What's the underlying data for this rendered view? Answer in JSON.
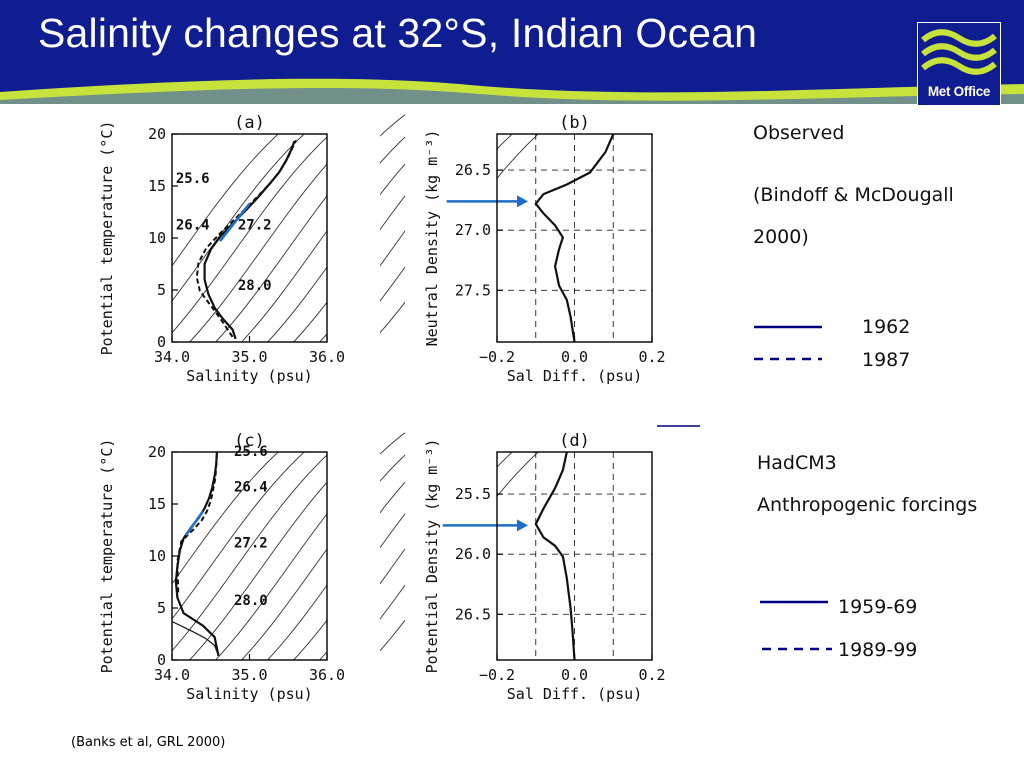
{
  "slide": {
    "title": "Salinity changes at 32°S, Indian Ocean",
    "logo_text": "Met Office",
    "header_color": "#101d90",
    "accent_color": "#c8e23c",
    "citation": "(Banks et al, GRL 2000)"
  },
  "observed": {
    "heading": "Observed",
    "source_line1": "(Bindoff & McDougall",
    "source_line2": "2000)",
    "legend": [
      {
        "label": "1962",
        "style": "solid"
      },
      {
        "label": "1987",
        "style": "dashed"
      }
    ]
  },
  "model": {
    "heading": "HadCM3",
    "subheading": "Anthropogenic forcings",
    "legend": [
      {
        "label": "1959-69",
        "style": "solid"
      },
      {
        "label": "1989-99",
        "style": "dashed"
      }
    ]
  },
  "chart_data": [
    {
      "id": "a",
      "type": "line",
      "panel_label": "(a)",
      "xlabel": "Salinity (psu)",
      "ylabel": "Potential temperature (°C)",
      "xlim": [
        34.0,
        36.0
      ],
      "ylim": [
        0,
        20
      ],
      "xticks": [
        "34.0",
        "35.0",
        "36.0"
      ],
      "yticks": [
        "0",
        "5",
        "10",
        "15",
        "20"
      ],
      "isopycnal_labels": [
        "25.6",
        "26.4",
        "27.2",
        "28.0"
      ],
      "series": [
        {
          "style": "solid",
          "points": [
            [
              34.82,
              0.3
            ],
            [
              34.78,
              1.2
            ],
            [
              34.66,
              2.2
            ],
            [
              34.55,
              3.3
            ],
            [
              34.47,
              4.6
            ],
            [
              34.42,
              6.0
            ],
            [
              34.42,
              7.5
            ],
            [
              34.5,
              8.9
            ],
            [
              34.63,
              10.2
            ],
            [
              34.8,
              11.5
            ],
            [
              34.97,
              12.8
            ],
            [
              35.12,
              14.0
            ],
            [
              35.26,
              15.2
            ],
            [
              35.38,
              16.3
            ],
            [
              35.47,
              17.4
            ],
            [
              35.54,
              18.5
            ],
            [
              35.58,
              19.3
            ]
          ]
        },
        {
          "style": "dashed",
          "points": [
            [
              34.78,
              0.5
            ],
            [
              34.62,
              2.3
            ],
            [
              34.49,
              3.6
            ],
            [
              34.36,
              4.9
            ],
            [
              34.32,
              6.2
            ],
            [
              34.34,
              7.6
            ],
            [
              34.44,
              9.0
            ],
            [
              34.6,
              10.3
            ],
            [
              34.78,
              11.6
            ],
            [
              34.96,
              12.9
            ],
            [
              35.12,
              14.1
            ],
            [
              35.27,
              15.3
            ],
            [
              35.39,
              16.4
            ],
            [
              35.48,
              17.5
            ],
            [
              35.55,
              18.6
            ],
            [
              35.6,
              19.4
            ]
          ]
        },
        {
          "style": "blue",
          "points": [
            [
              34.62,
              9.7
            ],
            [
              35.0,
              13.3
            ]
          ]
        }
      ]
    },
    {
      "id": "b",
      "type": "line",
      "panel_label": "(b)",
      "xlabel": "Sal Diff. (psu)",
      "ylabel": "Neutral Density (kg m⁻³)",
      "xlim": [
        -0.2,
        0.2
      ],
      "ylim": [
        27.93,
        26.2
      ],
      "xticks": [
        "−0.2",
        "0.0",
        "0.2"
      ],
      "yticks": [
        "26.5",
        "27.0",
        "27.5"
      ],
      "series": [
        {
          "style": "solid",
          "points": [
            [
              0.1,
              26.2
            ],
            [
              0.08,
              26.35
            ],
            [
              0.04,
              26.52
            ],
            [
              -0.02,
              26.62
            ],
            [
              -0.08,
              26.7
            ],
            [
              -0.1,
              26.78
            ],
            [
              -0.08,
              26.86
            ],
            [
              -0.05,
              26.96
            ],
            [
              -0.03,
              27.06
            ],
            [
              -0.04,
              27.16
            ],
            [
              -0.05,
              27.3
            ],
            [
              -0.04,
              27.46
            ],
            [
              -0.02,
              27.58
            ],
            [
              -0.01,
              27.72
            ],
            [
              0.0,
              27.93
            ]
          ]
        },
        {
          "style": "arrow",
          "points": [
            [
              -0.33,
              26.76
            ],
            [
              -0.12,
              26.76
            ]
          ]
        }
      ]
    },
    {
      "id": "c",
      "type": "line",
      "panel_label": "(c)",
      "xlabel": "Salinity (psu)",
      "ylabel": "Potential temperature (°C)",
      "xlim": [
        34.0,
        36.0
      ],
      "ylim": [
        0,
        20
      ],
      "xticks": [
        "34.0",
        "35.0",
        "36.0"
      ],
      "yticks": [
        "0",
        "5",
        "10",
        "15",
        "20"
      ],
      "isopycnal_labels": [
        "25.6",
        "26.4",
        "27.2",
        "28.0"
      ],
      "series": [
        {
          "style": "solid",
          "points": [
            [
              34.6,
              0.4
            ],
            [
              34.55,
              2.2
            ],
            [
              34.4,
              3.3
            ],
            [
              34.15,
              4.5
            ],
            [
              34.07,
              6.0
            ],
            [
              34.05,
              7.5
            ],
            [
              34.07,
              9.0
            ],
            [
              34.1,
              10.5
            ],
            [
              34.15,
              11.7
            ],
            [
              34.25,
              12.8
            ],
            [
              34.35,
              13.7
            ],
            [
              34.42,
              14.6
            ],
            [
              34.48,
              15.6
            ],
            [
              34.52,
              16.6
            ],
            [
              34.55,
              17.7
            ],
            [
              34.57,
              18.8
            ],
            [
              34.58,
              20.0
            ]
          ]
        },
        {
          "style": "dashed",
          "points": [
            [
              34.08,
              6.5
            ],
            [
              34.07,
              9.5
            ],
            [
              34.12,
              11.4
            ],
            [
              34.27,
              12.5
            ],
            [
              34.38,
              13.4
            ],
            [
              34.45,
              14.3
            ],
            [
              34.5,
              15.3
            ],
            [
              34.53,
              16.4
            ],
            [
              34.56,
              17.5
            ],
            [
              34.57,
              18.7
            ],
            [
              34.58,
              20.0
            ]
          ]
        },
        {
          "style": "thin",
          "points": [
            [
              34.6,
              0.4
            ],
            [
              34.55,
              1.4
            ],
            [
              34.43,
              2.1
            ],
            [
              34.25,
              2.8
            ],
            [
              34.0,
              3.7
            ]
          ]
        },
        {
          "style": "blue",
          "points": [
            [
              34.18,
              12.0
            ],
            [
              34.4,
              14.3
            ]
          ]
        }
      ]
    },
    {
      "id": "d",
      "type": "line",
      "panel_label": "(d)",
      "xlabel": "Sal Diff. (psu)",
      "ylabel": "Potential Density (kg m⁻³)",
      "xlim": [
        -0.2,
        0.2
      ],
      "ylim": [
        26.88,
        25.15
      ],
      "xticks": [
        "−0.2",
        "0.0",
        "0.2"
      ],
      "yticks": [
        "25.5",
        "26.0",
        "26.5"
      ],
      "series": [
        {
          "style": "solid",
          "points": [
            [
              -0.02,
              25.15
            ],
            [
              -0.03,
              25.3
            ],
            [
              -0.05,
              25.45
            ],
            [
              -0.08,
              25.62
            ],
            [
              -0.1,
              25.75
            ],
            [
              -0.08,
              25.86
            ],
            [
              -0.05,
              25.93
            ],
            [
              -0.03,
              26.02
            ],
            [
              -0.02,
              26.2
            ],
            [
              -0.01,
              26.45
            ],
            [
              -0.005,
              26.65
            ],
            [
              0.0,
              26.88
            ]
          ]
        },
        {
          "style": "arrow",
          "points": [
            [
              -0.34,
              25.76
            ],
            [
              -0.12,
              25.76
            ]
          ]
        }
      ]
    }
  ]
}
